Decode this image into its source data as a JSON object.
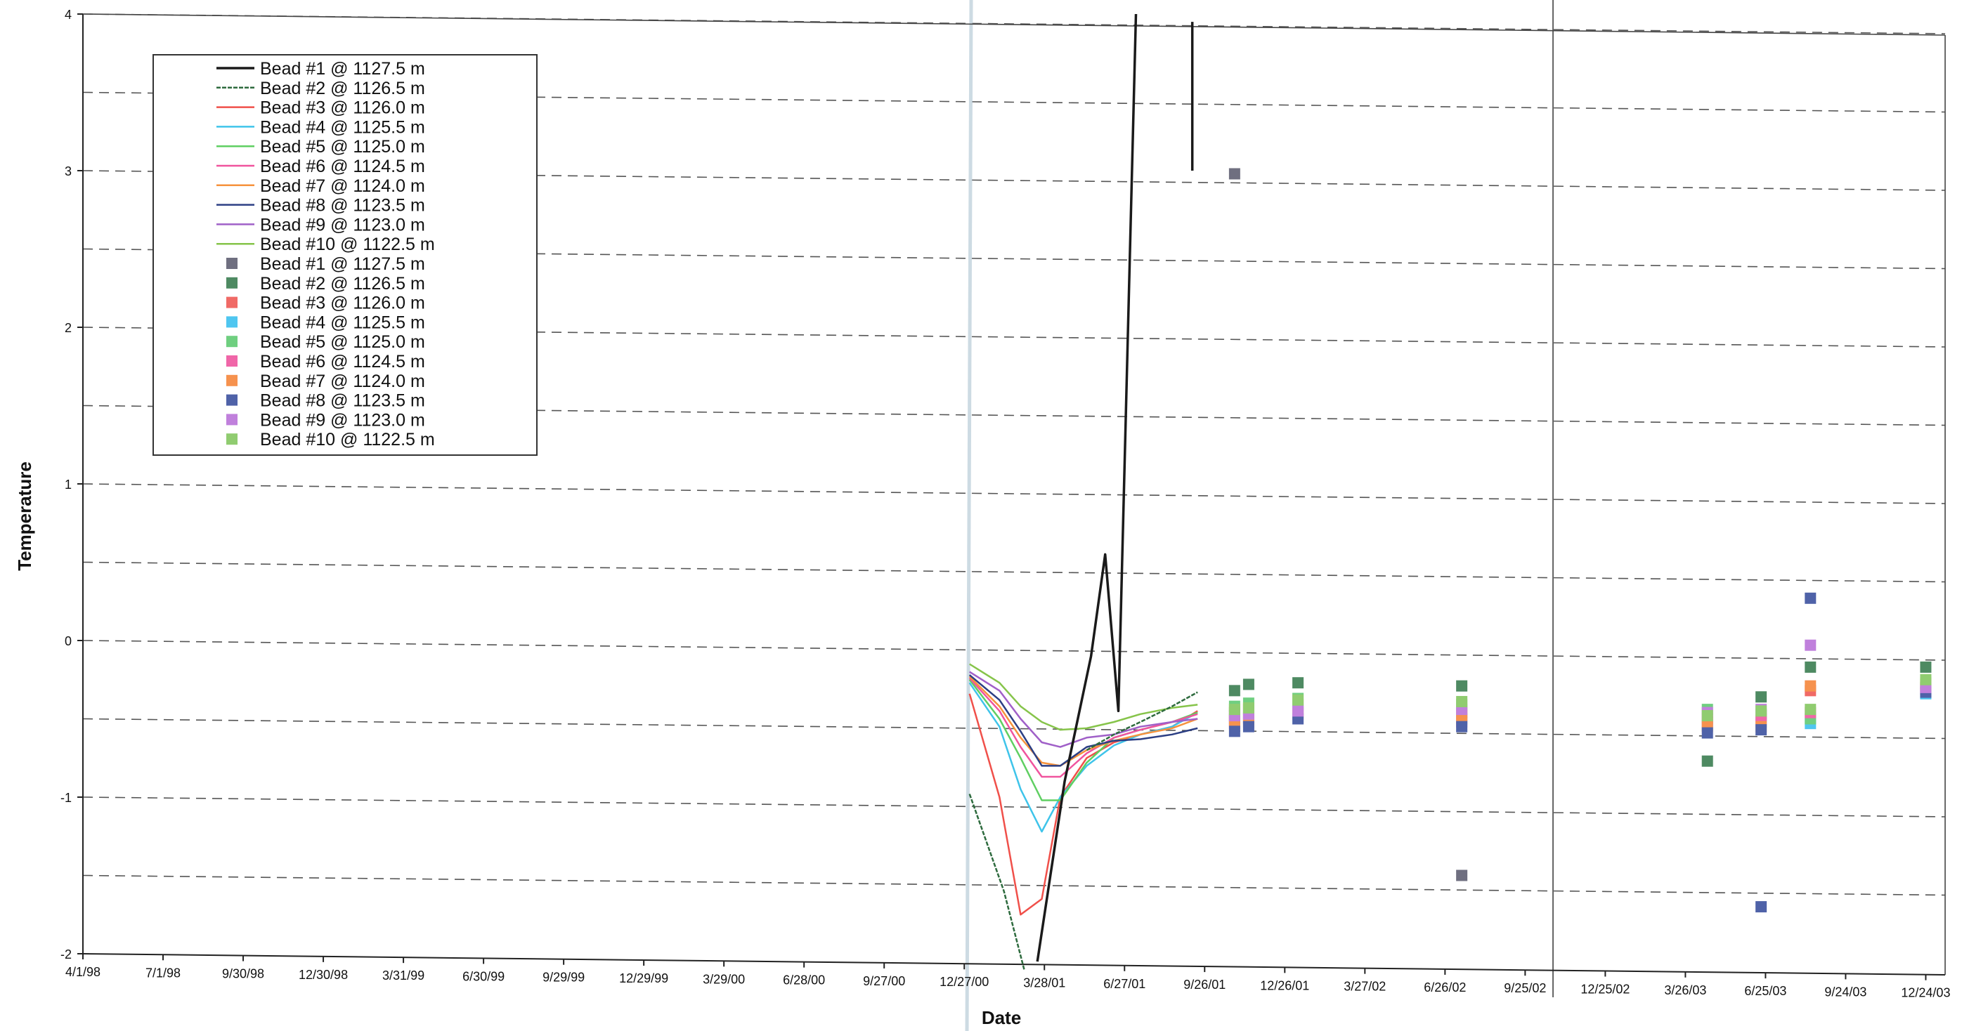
{
  "chart_data": {
    "type": "line",
    "title": "",
    "xlabel": "Date",
    "ylabel": "Temperature",
    "ylim": [
      -2,
      4
    ],
    "yticks": [
      -2,
      -1,
      0,
      1,
      2,
      3,
      4
    ],
    "ytick_labels": [
      "-2",
      "-1",
      "0",
      "1",
      "2",
      "3",
      "4"
    ],
    "xlim": [
      "1998-04-01",
      "2004-01-15"
    ],
    "xticks": [
      "1998-04-01",
      "1998-07-01",
      "1998-09-30",
      "1998-12-30",
      "1999-03-31",
      "1999-06-30",
      "1999-09-29",
      "1999-12-29",
      "2000-03-29",
      "2000-06-28",
      "2000-09-27",
      "2000-12-27",
      "2001-03-28",
      "2001-06-27",
      "2001-09-26",
      "2001-12-26",
      "2002-03-27",
      "2002-06-26",
      "2002-09-25",
      "2002-12-25",
      "2003-03-26",
      "2003-06-25",
      "2003-09-24",
      "2003-12-24"
    ],
    "xtick_labels": [
      "4/1/98",
      "7/1/98",
      "9/30/98",
      "12/30/98",
      "3/31/99",
      "6/30/99",
      "9/29/99",
      "12/29/99",
      "3/29/00",
      "6/28/00",
      "9/27/00",
      "12/27/00",
      "3/28/01",
      "6/27/01",
      "9/26/01",
      "12/26/01",
      "3/27/02",
      "6/26/02",
      "9/25/02",
      "12/25/02",
      "3/26/03",
      "6/25/03",
      "9/24/03",
      "12/24/03"
    ],
    "grid": "horizontal dashed at 0.5 intervals",
    "legend_position": "top-left",
    "legend": [
      {
        "label": "Bead #1 @ 1127.5 m",
        "kind": "line"
      },
      {
        "label": "Bead #2 @ 1126.5 m",
        "kind": "line"
      },
      {
        "label": "Bead #3 @ 1126.0 m",
        "kind": "line"
      },
      {
        "label": "Bead #4 @ 1125.5 m",
        "kind": "line"
      },
      {
        "label": "Bead #5 @ 1125.0 m",
        "kind": "line"
      },
      {
        "label": "Bead #6 @ 1124.5 m",
        "kind": "line"
      },
      {
        "label": "Bead #7 @ 1124.0 m",
        "kind": "line"
      },
      {
        "label": "Bead #8 @ 1123.5 m",
        "kind": "line"
      },
      {
        "label": "Bead #9 @ 1123.0 m",
        "kind": "line"
      },
      {
        "label": "Bead #10 @ 1122.5 m",
        "kind": "line"
      },
      {
        "label": "Bead #1 @ 1127.5 m",
        "kind": "marker"
      },
      {
        "label": "Bead #2 @ 1126.5 m",
        "kind": "marker"
      },
      {
        "label": "Bead #3 @ 1126.0 m",
        "kind": "marker"
      },
      {
        "label": "Bead #4 @ 1125.5 m",
        "kind": "marker"
      },
      {
        "label": "Bead #5 @ 1125.0 m",
        "kind": "marker"
      },
      {
        "label": "Bead #6 @ 1124.5 m",
        "kind": "marker"
      },
      {
        "label": "Bead #7 @ 1124.0 m",
        "kind": "marker"
      },
      {
        "label": "Bead #8 @ 1123.5 m",
        "kind": "marker"
      },
      {
        "label": "Bead #9 @ 1123.0 m",
        "kind": "marker"
      },
      {
        "label": "Bead #10 @ 1122.5 m",
        "kind": "marker"
      }
    ],
    "colors": {
      "bead1": "#1a1a1a",
      "bead2": "#2e6b3e",
      "bead3": "#f0504a",
      "bead4": "#3fc4ea",
      "bead5": "#5fcf62",
      "bead6": "#f0549e",
      "bead7": "#f6923c",
      "bead8": "#2c3f84",
      "bead9": "#a060c8",
      "bead10": "#86c44a",
      "marker1": "#6f6f80",
      "marker2": "#4e8a62",
      "marker3": "#f06a66",
      "marker4": "#4fc6f0",
      "marker5": "#6fcf80",
      "marker6": "#f066a8",
      "marker7": "#f6924e",
      "marker8": "#4f62a8",
      "marker9": "#c080dc",
      "marker10": "#90cc70"
    },
    "line_series": [
      {
        "key": "bead2",
        "points": [
          [
            "2001-01-02",
            -0.98
          ],
          [
            "2001-02-10",
            -1.6
          ],
          [
            "2001-03-05",
            -2.1
          ]
        ]
      },
      {
        "key": "bead3",
        "points": [
          [
            "2001-01-02",
            -0.34
          ],
          [
            "2001-02-05",
            -1.0
          ],
          [
            "2001-03-01",
            -1.75
          ],
          [
            "2001-03-25",
            -1.65
          ],
          [
            "2001-04-15",
            -1.0
          ],
          [
            "2001-05-15",
            -0.75
          ],
          [
            "2001-06-15",
            -0.65
          ],
          [
            "2001-07-15",
            -0.6
          ],
          [
            "2001-08-20",
            -0.55
          ],
          [
            "2001-09-18",
            -0.45
          ]
        ]
      },
      {
        "key": "bead4",
        "points": [
          [
            "2001-01-02",
            -0.27
          ],
          [
            "2001-02-05",
            -0.55
          ],
          [
            "2001-03-01",
            -0.95
          ],
          [
            "2001-03-25",
            -1.22
          ],
          [
            "2001-04-15",
            -1.0
          ],
          [
            "2001-05-15",
            -0.8
          ],
          [
            "2001-06-15",
            -0.67
          ],
          [
            "2001-07-15",
            -0.6
          ],
          [
            "2001-08-20",
            -0.55
          ],
          [
            "2001-09-18",
            -0.46
          ]
        ]
      },
      {
        "key": "bead5",
        "points": [
          [
            "2001-01-02",
            -0.25
          ],
          [
            "2001-02-05",
            -0.5
          ],
          [
            "2001-03-01",
            -0.75
          ],
          [
            "2001-03-25",
            -1.02
          ],
          [
            "2001-04-15",
            -1.02
          ],
          [
            "2001-05-15",
            -0.78
          ],
          [
            "2001-06-15",
            -0.62
          ],
          [
            "2001-07-15",
            -0.57
          ],
          [
            "2001-08-20",
            -0.52
          ],
          [
            "2001-09-18",
            -0.46
          ]
        ]
      },
      {
        "key": "bead6",
        "points": [
          [
            "2001-01-02",
            -0.24
          ],
          [
            "2001-02-05",
            -0.45
          ],
          [
            "2001-03-01",
            -0.68
          ],
          [
            "2001-03-25",
            -0.87
          ],
          [
            "2001-04-15",
            -0.87
          ],
          [
            "2001-05-15",
            -0.72
          ],
          [
            "2001-06-15",
            -0.62
          ],
          [
            "2001-07-15",
            -0.57
          ],
          [
            "2001-08-20",
            -0.52
          ],
          [
            "2001-09-18",
            -0.47
          ]
        ]
      },
      {
        "key": "bead7",
        "points": [
          [
            "2001-01-02",
            -0.23
          ],
          [
            "2001-02-05",
            -0.42
          ],
          [
            "2001-03-01",
            -0.62
          ],
          [
            "2001-03-25",
            -0.78
          ],
          [
            "2001-04-15",
            -0.8
          ],
          [
            "2001-05-15",
            -0.7
          ],
          [
            "2001-06-15",
            -0.64
          ],
          [
            "2001-07-15",
            -0.6
          ],
          [
            "2001-08-20",
            -0.56
          ],
          [
            "2001-09-18",
            -0.5
          ]
        ]
      },
      {
        "key": "bead8",
        "points": [
          [
            "2001-01-02",
            -0.22
          ],
          [
            "2001-02-05",
            -0.38
          ],
          [
            "2001-03-01",
            -0.58
          ],
          [
            "2001-03-25",
            -0.8
          ],
          [
            "2001-04-15",
            -0.8
          ],
          [
            "2001-05-15",
            -0.68
          ],
          [
            "2001-06-15",
            -0.64
          ],
          [
            "2001-07-15",
            -0.63
          ],
          [
            "2001-08-20",
            -0.6
          ],
          [
            "2001-09-18",
            -0.56
          ]
        ]
      },
      {
        "key": "bead9",
        "points": [
          [
            "2001-01-02",
            -0.2
          ],
          [
            "2001-02-05",
            -0.32
          ],
          [
            "2001-03-01",
            -0.5
          ],
          [
            "2001-03-25",
            -0.65
          ],
          [
            "2001-04-15",
            -0.68
          ],
          [
            "2001-05-15",
            -0.62
          ],
          [
            "2001-06-15",
            -0.6
          ],
          [
            "2001-07-15",
            -0.55
          ],
          [
            "2001-08-20",
            -0.52
          ],
          [
            "2001-09-18",
            -0.5
          ]
        ]
      },
      {
        "key": "bead10",
        "points": [
          [
            "2001-01-02",
            -0.15
          ],
          [
            "2001-02-05",
            -0.27
          ],
          [
            "2001-03-01",
            -0.42
          ],
          [
            "2001-03-25",
            -0.52
          ],
          [
            "2001-04-15",
            -0.57
          ],
          [
            "2001-05-15",
            -0.56
          ],
          [
            "2001-06-15",
            -0.52
          ],
          [
            "2001-07-15",
            -0.47
          ],
          [
            "2001-08-20",
            -0.43
          ],
          [
            "2001-09-18",
            -0.41
          ]
        ]
      },
      {
        "key": "bead2",
        "points": [
          [
            "2001-05-15",
            -0.7
          ],
          [
            "2001-06-15",
            -0.6
          ],
          [
            "2001-07-15",
            -0.52
          ],
          [
            "2001-08-20",
            -0.42
          ],
          [
            "2001-09-18",
            -0.33
          ]
        ]
      },
      {
        "key": "bead1",
        "points": [
          [
            "2001-03-20",
            -2.05
          ],
          [
            "2001-04-20",
            -0.9
          ],
          [
            "2001-05-20",
            -0.1
          ],
          [
            "2001-06-05",
            0.55
          ],
          [
            "2001-06-20",
            -0.45
          ],
          [
            "2001-07-10",
            4.0
          ]
        ]
      },
      {
        "key": "bead1",
        "points": [
          [
            "2001-09-12",
            3.95
          ],
          [
            "2001-09-12",
            3.0
          ]
        ]
      }
    ],
    "marker_series": [
      {
        "key": "marker1",
        "points": [
          [
            "2001-10-30",
            2.98
          ],
          [
            "2002-07-15",
            -1.5
          ]
        ]
      },
      {
        "key": "marker2",
        "points": [
          [
            "2001-10-30",
            -0.32
          ],
          [
            "2001-11-15",
            -0.28
          ],
          [
            "2002-01-10",
            -0.27
          ],
          [
            "2002-07-15",
            -0.29
          ],
          [
            "2003-04-20",
            -0.77
          ],
          [
            "2003-06-20",
            -0.36
          ],
          [
            "2003-08-15",
            -0.17
          ],
          [
            "2003-12-24",
            -0.17
          ]
        ]
      },
      {
        "key": "marker3",
        "points": [
          [
            "2001-10-30",
            -0.46
          ],
          [
            "2001-11-15",
            -0.44
          ],
          [
            "2002-01-10",
            -0.41
          ],
          [
            "2002-07-15",
            -0.46
          ],
          [
            "2003-04-20",
            -0.5
          ],
          [
            "2003-06-20",
            -0.48
          ],
          [
            "2003-08-15",
            -0.32
          ],
          [
            "2003-12-24",
            -0.3
          ]
        ]
      },
      {
        "key": "marker4",
        "points": [
          [
            "2001-10-30",
            -0.5
          ],
          [
            "2001-11-15",
            -0.49
          ],
          [
            "2002-01-10",
            -0.44
          ],
          [
            "2002-07-15",
            -0.5
          ],
          [
            "2003-04-20",
            -0.54
          ],
          [
            "2003-06-20",
            -0.52
          ],
          [
            "2003-08-15",
            -0.53
          ],
          [
            "2003-12-24",
            -0.34
          ]
        ]
      },
      {
        "key": "marker5",
        "points": [
          [
            "2001-10-30",
            -0.42
          ],
          [
            "2001-11-15",
            -0.4
          ],
          [
            "2002-01-10",
            -0.37
          ],
          [
            "2002-07-15",
            -0.41
          ],
          [
            "2003-04-20",
            -0.44
          ],
          [
            "2003-06-20",
            -0.47
          ],
          [
            "2003-08-15",
            -0.5
          ],
          [
            "2003-12-24",
            -0.27
          ]
        ]
      },
      {
        "key": "marker6",
        "points": [
          [
            "2001-10-30",
            -0.53
          ],
          [
            "2001-11-15",
            -0.5
          ],
          [
            "2002-01-10",
            -0.47
          ],
          [
            "2002-07-15",
            -0.52
          ],
          [
            "2003-04-20",
            -0.52
          ],
          [
            "2003-06-20",
            -0.5
          ],
          [
            "2003-08-15",
            -0.46
          ],
          [
            "2003-12-24",
            -0.31
          ]
        ]
      },
      {
        "key": "marker7",
        "points": [
          [
            "2001-10-30",
            -0.51
          ],
          [
            "2001-11-15",
            -0.52
          ],
          [
            "2002-01-10",
            -0.46
          ],
          [
            "2002-07-15",
            -0.48
          ],
          [
            "2003-04-20",
            -0.55
          ],
          [
            "2003-06-20",
            -0.55
          ],
          [
            "2003-08-15",
            -0.29
          ],
          [
            "2003-12-24",
            -0.28
          ]
        ]
      },
      {
        "key": "marker8",
        "points": [
          [
            "2001-10-30",
            -0.58
          ],
          [
            "2001-11-15",
            -0.55
          ],
          [
            "2002-01-10",
            -0.5
          ],
          [
            "2002-07-15",
            -0.55
          ],
          [
            "2003-04-20",
            -0.59
          ],
          [
            "2003-06-20",
            -0.57
          ],
          [
            "2003-08-15",
            0.27
          ],
          [
            "2003-12-24",
            -0.33
          ]
        ]
      },
      {
        "key": "marker9",
        "points": [
          [
            "2001-10-30",
            -0.48
          ],
          [
            "2001-11-15",
            -0.47
          ],
          [
            "2002-01-10",
            -0.45
          ],
          [
            "2002-07-15",
            -0.44
          ],
          [
            "2003-04-20",
            -0.46
          ],
          [
            "2003-06-20",
            -0.44
          ],
          [
            "2003-08-15",
            -0.03
          ],
          [
            "2003-12-24",
            -0.3
          ]
        ]
      },
      {
        "key": "marker10",
        "points": [
          [
            "2001-10-30",
            -0.44
          ],
          [
            "2001-11-15",
            -0.43
          ],
          [
            "2002-01-10",
            -0.38
          ],
          [
            "2002-07-15",
            -0.39
          ],
          [
            "2003-04-20",
            -0.48
          ],
          [
            "2003-06-20",
            -0.45
          ],
          [
            "2003-08-15",
            -0.44
          ],
          [
            "2003-12-24",
            -0.25
          ]
        ]
      },
      {
        "key": "marker8",
        "points": [
          [
            "2003-06-20",
            -1.7
          ]
        ]
      }
    ]
  }
}
